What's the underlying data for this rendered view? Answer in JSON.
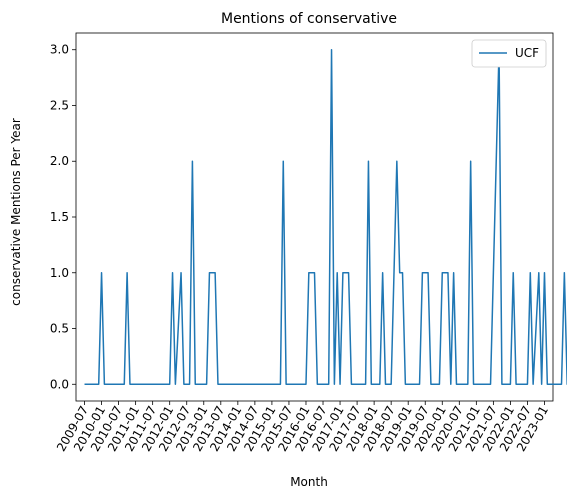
{
  "chart_data": {
    "type": "line",
    "title": "Mentions of conservative",
    "xlabel": "Month",
    "ylabel": "conservative Mentions Per Year",
    "ylim": [
      -0.15,
      3.15
    ],
    "yticks": [
      "0.0",
      "0.5",
      "1.0",
      "1.5",
      "2.0",
      "2.5",
      "3.0"
    ],
    "xtick_labels": [
      "2009-07",
      "2010-01",
      "2010-07",
      "2011-01",
      "2011-07",
      "2012-01",
      "2012-07",
      "2013-01",
      "2013-07",
      "2014-01",
      "2014-07",
      "2015-01",
      "2015-07",
      "2016-01",
      "2016-07",
      "2017-01",
      "2017-07",
      "2018-01",
      "2018-07",
      "2019-01",
      "2019-07",
      "2020-01",
      "2020-07",
      "2021-01",
      "2021-07",
      "2022-01",
      "2022-07",
      "2023-01"
    ],
    "xlim": [
      "2009-04",
      "2023-04"
    ],
    "grid": false,
    "legend_position": "top-right",
    "series": [
      {
        "name": "UCF",
        "color": "#1f77b4",
        "points": [
          [
            "2009-07",
            0
          ],
          [
            "2009-12",
            0
          ],
          [
            "2010-01",
            1
          ],
          [
            "2010-02",
            0
          ],
          [
            "2010-09",
            0
          ],
          [
            "2010-10",
            1
          ],
          [
            "2010-11",
            0
          ],
          [
            "2012-01",
            0
          ],
          [
            "2012-02",
            1
          ],
          [
            "2012-03",
            0
          ],
          [
            "2012-05",
            1
          ],
          [
            "2012-06",
            0
          ],
          [
            "2012-08",
            0
          ],
          [
            "2012-09",
            2
          ],
          [
            "2012-10",
            0
          ],
          [
            "2013-02",
            0
          ],
          [
            "2013-03",
            1
          ],
          [
            "2013-05",
            1
          ],
          [
            "2013-06",
            0
          ],
          [
            "2015-04",
            0
          ],
          [
            "2015-05",
            2
          ],
          [
            "2015-06",
            0
          ],
          [
            "2016-01",
            0
          ],
          [
            "2016-02",
            1
          ],
          [
            "2016-04",
            1
          ],
          [
            "2016-05",
            0
          ],
          [
            "2016-09",
            0
          ],
          [
            "2016-10",
            3
          ],
          [
            "2016-11",
            0
          ],
          [
            "2016-12",
            1
          ],
          [
            "2017-01",
            0
          ],
          [
            "2017-02",
            1
          ],
          [
            "2017-04",
            1
          ],
          [
            "2017-05",
            0
          ],
          [
            "2017-10",
            0
          ],
          [
            "2017-11",
            2
          ],
          [
            "2017-12",
            0
          ],
          [
            "2018-03",
            0
          ],
          [
            "2018-04",
            1
          ],
          [
            "2018-05",
            0
          ],
          [
            "2018-07",
            0
          ],
          [
            "2018-09",
            2
          ],
          [
            "2018-10",
            1
          ],
          [
            "2018-11",
            1
          ],
          [
            "2018-12",
            0
          ],
          [
            "2019-05",
            0
          ],
          [
            "2019-06",
            1
          ],
          [
            "2019-08",
            1
          ],
          [
            "2019-09",
            0
          ],
          [
            "2019-12",
            0
          ],
          [
            "2020-01",
            1
          ],
          [
            "2020-03",
            1
          ],
          [
            "2020-04",
            0
          ],
          [
            "2020-05",
            1
          ],
          [
            "2020-06",
            0
          ],
          [
            "2020-10",
            0
          ],
          [
            "2020-11",
            2
          ],
          [
            "2020-12",
            0
          ],
          [
            "2021-06",
            0
          ],
          [
            "2021-09",
            3
          ],
          [
            "2021-10",
            0
          ],
          [
            "2022-01",
            0
          ],
          [
            "2022-02",
            1
          ],
          [
            "2022-03",
            0
          ],
          [
            "2022-07",
            0
          ],
          [
            "2022-08",
            1
          ],
          [
            "2022-09",
            0
          ],
          [
            "2022-11",
            1
          ],
          [
            "2022-12",
            0
          ],
          [
            "2023-01",
            1
          ],
          [
            "2023-02",
            0
          ],
          [
            "2023-07",
            0
          ],
          [
            "2023-08",
            1
          ],
          [
            "2023-09",
            0
          ],
          [
            "2024-01",
            0
          ]
        ]
      }
    ]
  }
}
